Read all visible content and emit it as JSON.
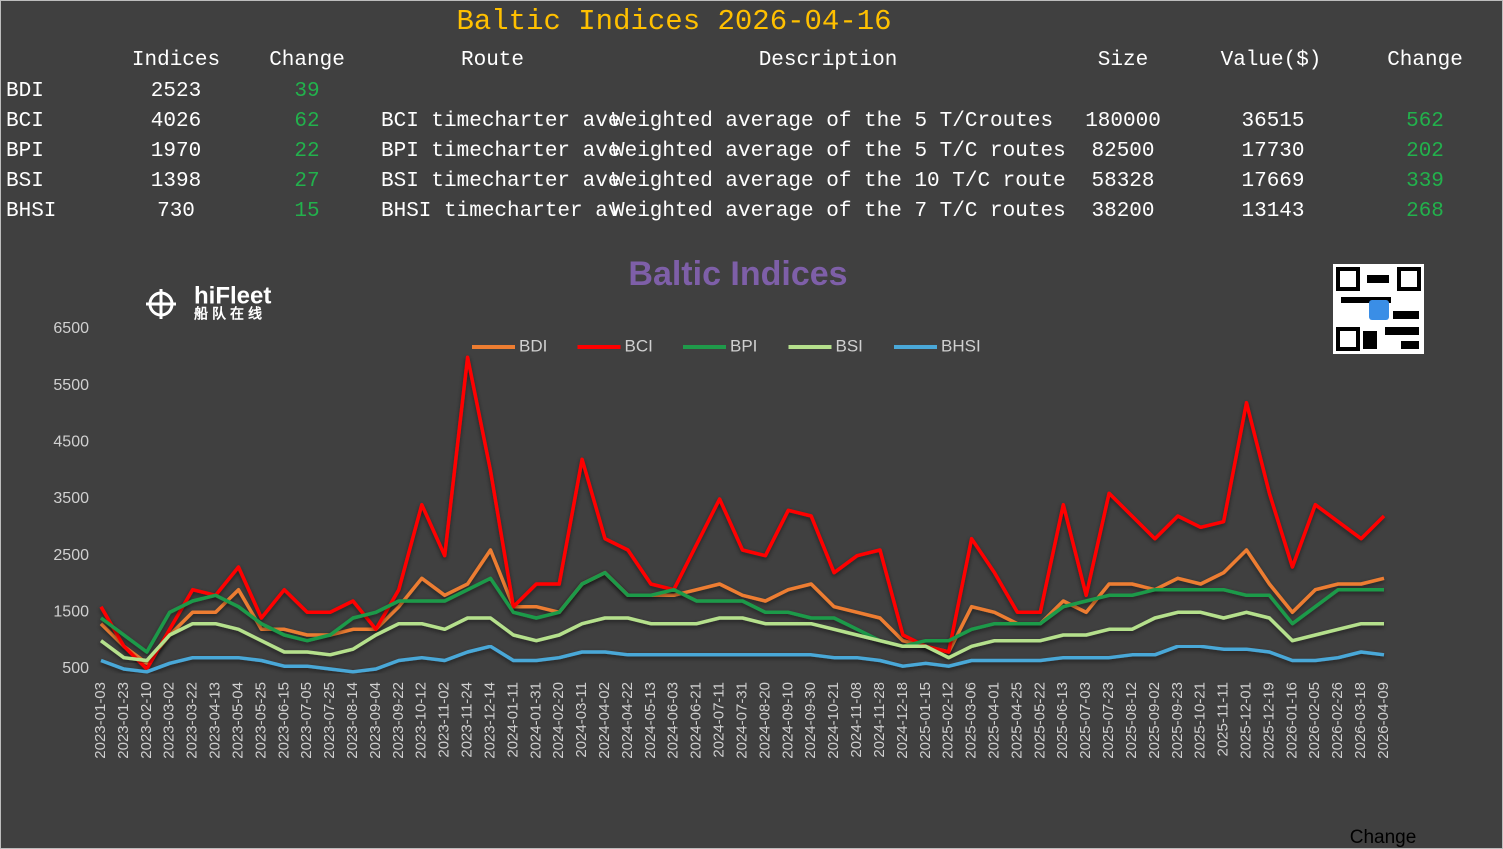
{
  "title": "Baltic Indices 2026-04-16",
  "table": {
    "headers": [
      "Indices",
      "Change",
      "Route",
      "Description",
      "Size",
      "Value($)",
      "Change"
    ],
    "rows": [
      [
        "BDI",
        2523,
        39
      ],
      [
        "BCI",
        4026,
        62,
        "BCI timecharter ave",
        "Weighted average of the 5 T/Croutes",
        180000,
        36515,
        562
      ],
      [
        "BPI",
        1970,
        22,
        "BPI timecharter ave",
        "Weighted average of the 5 T/C routes",
        82500,
        17730,
        202
      ],
      [
        "BSI",
        1398,
        27,
        "BSI timecharter ave",
        "Weighted average of the 10 T/C route",
        58328,
        17669,
        339
      ],
      [
        "BHSI",
        730,
        15,
        "BHSI timecharter av",
        "Weighted average of the 7 T/C routes",
        38200,
        13143,
        268
      ]
    ]
  },
  "logo": {
    "name": "hiFleet",
    "subtitle": "船队在线"
  },
  "footer": "Change",
  "chart_data": {
    "type": "line",
    "title": "Baltic Indices",
    "legend": "top",
    "grid": false,
    "x": [
      "2023-01-03",
      "2023-01-23",
      "2023-02-10",
      "2023-03-02",
      "2023-03-22",
      "2023-04-13",
      "2023-05-04",
      "2023-05-25",
      "2023-06-15",
      "2023-07-05",
      "2023-07-25",
      "2023-08-14",
      "2023-09-04",
      "2023-09-22",
      "2023-10-12",
      "2023-11-02",
      "2023-11-24",
      "2023-12-14",
      "2024-01-11",
      "2024-01-31",
      "2024-02-20",
      "2024-03-11",
      "2024-04-02",
      "2024-04-22",
      "2024-05-13",
      "2024-06-03",
      "2024-06-21",
      "2024-07-11",
      "2024-07-31",
      "2024-08-20",
      "2024-09-10",
      "2024-09-30",
      "2024-10-21",
      "2024-11-08",
      "2024-11-28",
      "2024-12-18",
      "2025-01-15",
      "2025-02-12",
      "2025-03-06",
      "2025-04-01",
      "2025-04-25",
      "2025-05-22",
      "2025-06-13",
      "2025-07-03",
      "2025-07-23",
      "2025-08-12",
      "2025-09-02",
      "2025-09-23",
      "2025-10-21",
      "2025-11-11",
      "2025-12-01",
      "2025-12-19",
      "2026-01-16",
      "2026-02-05",
      "2026-02-26",
      "2026-03-18",
      "2026-04-09"
    ],
    "ylim": [
      500,
      6500
    ],
    "yticks": [
      500,
      1500,
      2500,
      3500,
      4500,
      5500,
      6500
    ],
    "series": [
      {
        "name": "BDI",
        "color": "#ed7d31",
        "values": [
          1300,
          900,
          600,
          1100,
          1500,
          1500,
          1900,
          1200,
          1200,
          1100,
          1100,
          1200,
          1200,
          1600,
          2100,
          1800,
          2000,
          2600,
          1600,
          1600,
          1500,
          2000,
          2200,
          1800,
          1800,
          1800,
          1900,
          2000,
          1800,
          1700,
          1900,
          2000,
          1600,
          1500,
          1400,
          1000,
          900,
          800,
          1600,
          1500,
          1300,
          1300,
          1700,
          1500,
          2000,
          2000,
          1900,
          2100,
          2000,
          2200,
          2600,
          2000,
          1500,
          1900,
          2000,
          2000,
          2100
        ]
      },
      {
        "name": "BCI",
        "color": "#ff0000",
        "values": [
          1600,
          900,
          500,
          1200,
          1900,
          1800,
          2300,
          1400,
          1900,
          1500,
          1500,
          1700,
          1200,
          1900,
          3400,
          2500,
          6000,
          4000,
          1600,
          2000,
          2000,
          4200,
          2800,
          2600,
          2000,
          1900,
          2700,
          3500,
          2600,
          2500,
          3300,
          3200,
          2200,
          2500,
          2600,
          1100,
          900,
          800,
          2800,
          2200,
          1500,
          1500,
          3400,
          1800,
          3600,
          3200,
          2800,
          3200,
          3000,
          3100,
          5200,
          3600,
          2300,
          3400,
          3100,
          2800,
          3200
        ]
      },
      {
        "name": "BPI",
        "color": "#1f9a4a",
        "values": [
          1400,
          1100,
          800,
          1500,
          1700,
          1800,
          1600,
          1300,
          1100,
          1000,
          1100,
          1400,
          1500,
          1700,
          1700,
          1700,
          1900,
          2100,
          1500,
          1400,
          1500,
          2000,
          2200,
          1800,
          1800,
          1900,
          1700,
          1700,
          1700,
          1500,
          1500,
          1400,
          1400,
          1200,
          1000,
          900,
          1000,
          1000,
          1200,
          1300,
          1300,
          1300,
          1600,
          1700,
          1800,
          1800,
          1900,
          1900,
          1900,
          1900,
          1800,
          1800,
          1300,
          1600,
          1900,
          1900,
          1900
        ]
      },
      {
        "name": "BSI",
        "color": "#b5e08c",
        "values": [
          1000,
          700,
          650,
          1100,
          1300,
          1300,
          1200,
          1000,
          800,
          800,
          750,
          850,
          1100,
          1300,
          1300,
          1200,
          1400,
          1400,
          1100,
          1000,
          1100,
          1300,
          1400,
          1400,
          1300,
          1300,
          1300,
          1400,
          1400,
          1300,
          1300,
          1300,
          1200,
          1100,
          1000,
          900,
          900,
          700,
          900,
          1000,
          1000,
          1000,
          1100,
          1100,
          1200,
          1200,
          1400,
          1500,
          1500,
          1400,
          1500,
          1400,
          1000,
          1100,
          1200,
          1300,
          1300
        ]
      },
      {
        "name": "BHSI",
        "color": "#4aa8d8",
        "values": [
          650,
          500,
          450,
          600,
          700,
          700,
          700,
          650,
          550,
          550,
          500,
          450,
          500,
          650,
          700,
          650,
          800,
          900,
          650,
          650,
          700,
          800,
          800,
          750,
          750,
          750,
          750,
          750,
          750,
          750,
          750,
          750,
          700,
          700,
          650,
          550,
          600,
          550,
          650,
          650,
          650,
          650,
          700,
          700,
          700,
          750,
          750,
          900,
          900,
          850,
          850,
          800,
          650,
          650,
          700,
          800,
          750
        ]
      }
    ]
  }
}
